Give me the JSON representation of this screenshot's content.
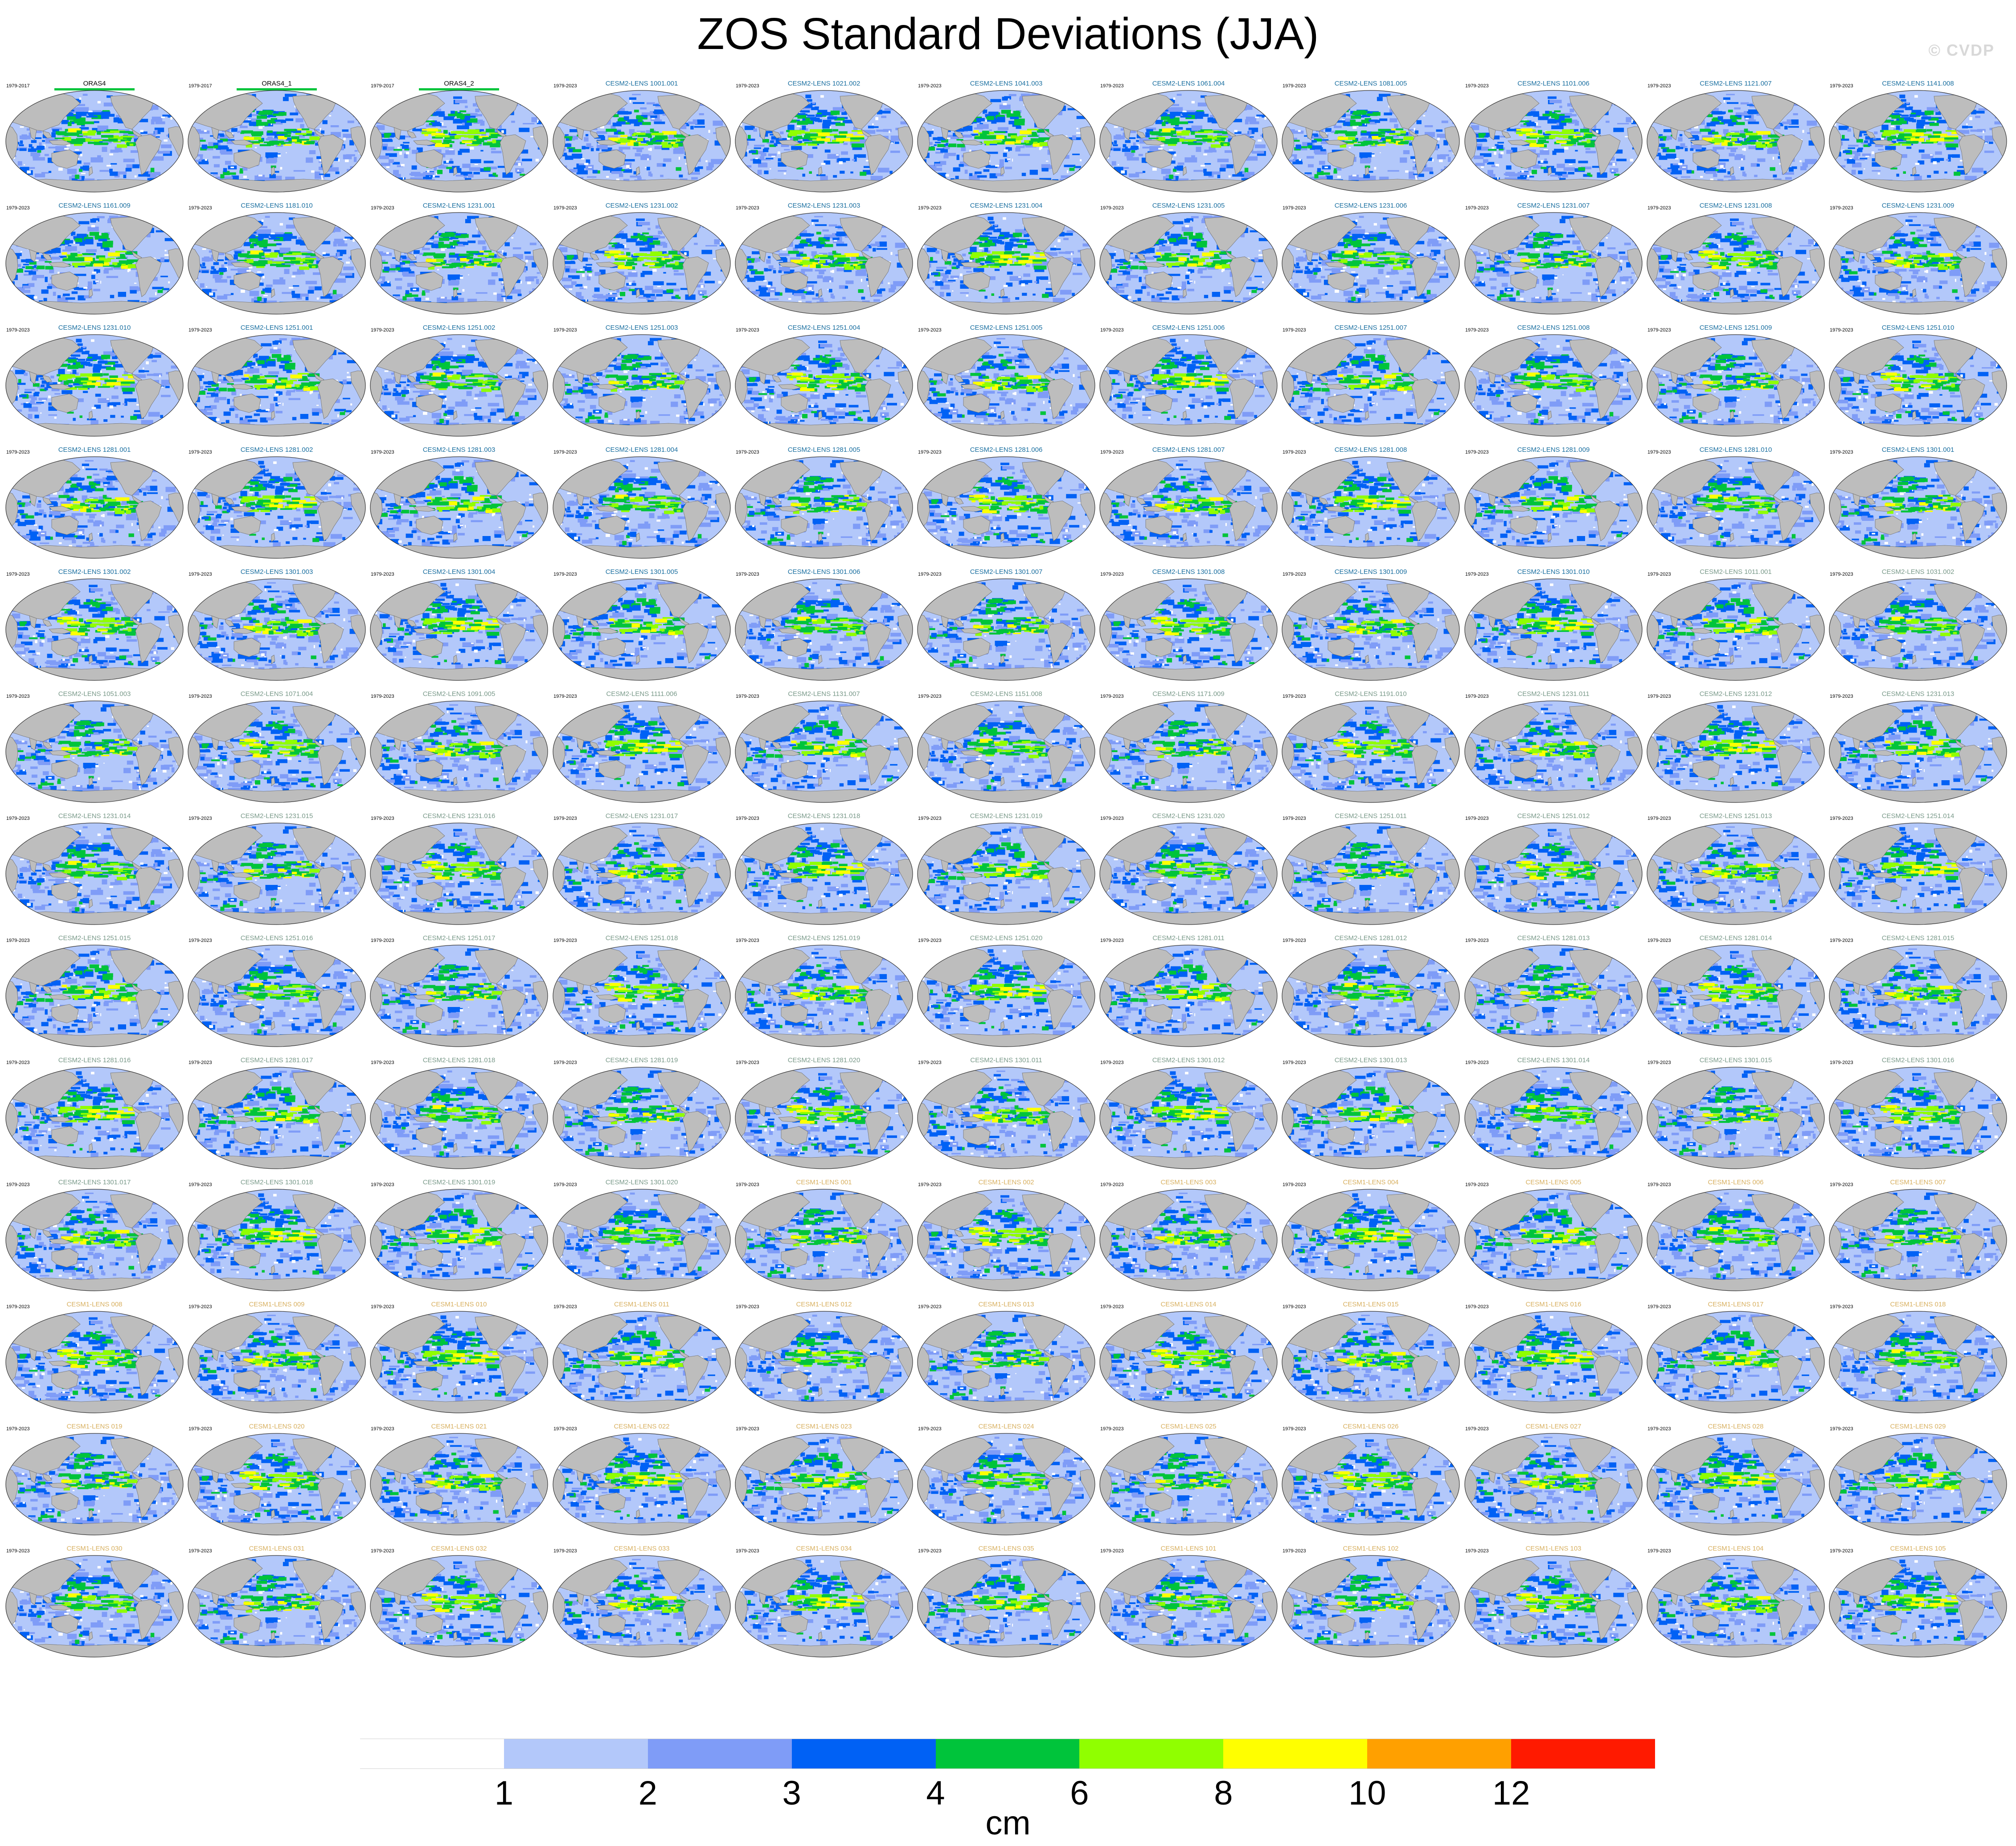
{
  "title": "ZOS Standard Deviations (JJA)",
  "watermark": "© CVDP",
  "chart_data": {
    "type": "heatmap",
    "title": "ZOS Standard Deviations (JJA)",
    "grid": {
      "rows": 13,
      "cols": 11
    },
    "units": "cm",
    "colorbar": {
      "levels": [
        1,
        2,
        3,
        4,
        6,
        8,
        10,
        12
      ],
      "tick_labels": [
        "1",
        "2",
        "3",
        "4",
        "6",
        "8",
        "10",
        "12"
      ],
      "colors": [
        "#ffffff",
        "#b3c8fa",
        "#7f9cf7",
        "#0061f5",
        "#00c43b",
        "#90ff00",
        "#ffff00",
        "#ffa000",
        "#ff1a00"
      ]
    },
    "colors": {
      "land": "#bdbdbd",
      "coast": "#707070",
      "ocean_base": "#b3c8fa",
      "obs_label": "#000000",
      "cesm2_label": "#1a6fa0",
      "cesm2_smbb_label": "#7a9a8a",
      "cesm1_label": "#d8b060",
      "obs_period_bar": "#00c43b"
    },
    "panels": [
      {
        "name": "ORAS4",
        "period": "1979-2017",
        "group": "obs"
      },
      {
        "name": "ORAS4_1",
        "period": "1979-2017",
        "group": "obs"
      },
      {
        "name": "ORAS4_2",
        "period": "1979-2017",
        "group": "obs"
      },
      {
        "name": "CESM2-LENS 1001.001",
        "period": "1979-2023",
        "group": "cesm2"
      },
      {
        "name": "CESM2-LENS 1021.002",
        "period": "1979-2023",
        "group": "cesm2"
      },
      {
        "name": "CESM2-LENS 1041.003",
        "period": "1979-2023",
        "group": "cesm2"
      },
      {
        "name": "CESM2-LENS 1061.004",
        "period": "1979-2023",
        "group": "cesm2"
      },
      {
        "name": "CESM2-LENS 1081.005",
        "period": "1979-2023",
        "group": "cesm2"
      },
      {
        "name": "CESM2-LENS 1101.006",
        "period": "1979-2023",
        "group": "cesm2"
      },
      {
        "name": "CESM2-LENS 1121.007",
        "period": "1979-2023",
        "group": "cesm2"
      },
      {
        "name": "CESM2-LENS 1141.008",
        "period": "1979-2023",
        "group": "cesm2"
      },
      {
        "name": "CESM2-LENS 1161.009",
        "period": "1979-2023",
        "group": "cesm2"
      },
      {
        "name": "CESM2-LENS 1181.010",
        "period": "1979-2023",
        "group": "cesm2"
      },
      {
        "name": "CESM2-LENS 1231.001",
        "period": "1979-2023",
        "group": "cesm2"
      },
      {
        "name": "CESM2-LENS 1231.002",
        "period": "1979-2023",
        "group": "cesm2"
      },
      {
        "name": "CESM2-LENS 1231.003",
        "period": "1979-2023",
        "group": "cesm2"
      },
      {
        "name": "CESM2-LENS 1231.004",
        "period": "1979-2023",
        "group": "cesm2"
      },
      {
        "name": "CESM2-LENS 1231.005",
        "period": "1979-2023",
        "group": "cesm2"
      },
      {
        "name": "CESM2-LENS 1231.006",
        "period": "1979-2023",
        "group": "cesm2"
      },
      {
        "name": "CESM2-LENS 1231.007",
        "period": "1979-2023",
        "group": "cesm2"
      },
      {
        "name": "CESM2-LENS 1231.008",
        "period": "1979-2023",
        "group": "cesm2"
      },
      {
        "name": "CESM2-LENS 1231.009",
        "period": "1979-2023",
        "group": "cesm2"
      },
      {
        "name": "CESM2-LENS 1231.010",
        "period": "1979-2023",
        "group": "cesm2"
      },
      {
        "name": "CESM2-LENS 1251.001",
        "period": "1979-2023",
        "group": "cesm2"
      },
      {
        "name": "CESM2-LENS 1251.002",
        "period": "1979-2023",
        "group": "cesm2"
      },
      {
        "name": "CESM2-LENS 1251.003",
        "period": "1979-2023",
        "group": "cesm2"
      },
      {
        "name": "CESM2-LENS 1251.004",
        "period": "1979-2023",
        "group": "cesm2"
      },
      {
        "name": "CESM2-LENS 1251.005",
        "period": "1979-2023",
        "group": "cesm2"
      },
      {
        "name": "CESM2-LENS 1251.006",
        "period": "1979-2023",
        "group": "cesm2"
      },
      {
        "name": "CESM2-LENS 1251.007",
        "period": "1979-2023",
        "group": "cesm2"
      },
      {
        "name": "CESM2-LENS 1251.008",
        "period": "1979-2023",
        "group": "cesm2"
      },
      {
        "name": "CESM2-LENS 1251.009",
        "period": "1979-2023",
        "group": "cesm2"
      },
      {
        "name": "CESM2-LENS 1251.010",
        "period": "1979-2023",
        "group": "cesm2"
      },
      {
        "name": "CESM2-LENS 1281.001",
        "period": "1979-2023",
        "group": "cesm2"
      },
      {
        "name": "CESM2-LENS 1281.002",
        "period": "1979-2023",
        "group": "cesm2"
      },
      {
        "name": "CESM2-LENS 1281.003",
        "period": "1979-2023",
        "group": "cesm2"
      },
      {
        "name": "CESM2-LENS 1281.004",
        "period": "1979-2023",
        "group": "cesm2"
      },
      {
        "name": "CESM2-LENS 1281.005",
        "period": "1979-2023",
        "group": "cesm2"
      },
      {
        "name": "CESM2-LENS 1281.006",
        "period": "1979-2023",
        "group": "cesm2"
      },
      {
        "name": "CESM2-LENS 1281.007",
        "period": "1979-2023",
        "group": "cesm2"
      },
      {
        "name": "CESM2-LENS 1281.008",
        "period": "1979-2023",
        "group": "cesm2"
      },
      {
        "name": "CESM2-LENS 1281.009",
        "period": "1979-2023",
        "group": "cesm2"
      },
      {
        "name": "CESM2-LENS 1281.010",
        "period": "1979-2023",
        "group": "cesm2"
      },
      {
        "name": "CESM2-LENS 1301.001",
        "period": "1979-2023",
        "group": "cesm2"
      },
      {
        "name": "CESM2-LENS 1301.002",
        "period": "1979-2023",
        "group": "cesm2"
      },
      {
        "name": "CESM2-LENS 1301.003",
        "period": "1979-2023",
        "group": "cesm2"
      },
      {
        "name": "CESM2-LENS 1301.004",
        "period": "1979-2023",
        "group": "cesm2"
      },
      {
        "name": "CESM2-LENS 1301.005",
        "period": "1979-2023",
        "group": "cesm2"
      },
      {
        "name": "CESM2-LENS 1301.006",
        "period": "1979-2023",
        "group": "cesm2"
      },
      {
        "name": "CESM2-LENS 1301.007",
        "period": "1979-2023",
        "group": "cesm2"
      },
      {
        "name": "CESM2-LENS 1301.008",
        "period": "1979-2023",
        "group": "cesm2"
      },
      {
        "name": "CESM2-LENS 1301.009",
        "period": "1979-2023",
        "group": "cesm2"
      },
      {
        "name": "CESM2-LENS 1301.010",
        "period": "1979-2023",
        "group": "cesm2"
      },
      {
        "name": "CESM2-LENS 1011.001",
        "period": "1979-2023",
        "group": "cesm2_smbb"
      },
      {
        "name": "CESM2-LENS 1031.002",
        "period": "1979-2023",
        "group": "cesm2_smbb"
      },
      {
        "name": "CESM2-LENS 1051.003",
        "period": "1979-2023",
        "group": "cesm2_smbb"
      },
      {
        "name": "CESM2-LENS 1071.004",
        "period": "1979-2023",
        "group": "cesm2_smbb"
      },
      {
        "name": "CESM2-LENS 1091.005",
        "period": "1979-2023",
        "group": "cesm2_smbb"
      },
      {
        "name": "CESM2-LENS 1111.006",
        "period": "1979-2023",
        "group": "cesm2_smbb"
      },
      {
        "name": "CESM2-LENS 1131.007",
        "period": "1979-2023",
        "group": "cesm2_smbb"
      },
      {
        "name": "CESM2-LENS 1151.008",
        "period": "1979-2023",
        "group": "cesm2_smbb"
      },
      {
        "name": "CESM2-LENS 1171.009",
        "period": "1979-2023",
        "group": "cesm2_smbb"
      },
      {
        "name": "CESM2-LENS 1191.010",
        "period": "1979-2023",
        "group": "cesm2_smbb"
      },
      {
        "name": "CESM2-LENS 1231.011",
        "period": "1979-2023",
        "group": "cesm2_smbb"
      },
      {
        "name": "CESM2-LENS 1231.012",
        "period": "1979-2023",
        "group": "cesm2_smbb"
      },
      {
        "name": "CESM2-LENS 1231.013",
        "period": "1979-2023",
        "group": "cesm2_smbb"
      },
      {
        "name": "CESM2-LENS 1231.014",
        "period": "1979-2023",
        "group": "cesm2_smbb"
      },
      {
        "name": "CESM2-LENS 1231.015",
        "period": "1979-2023",
        "group": "cesm2_smbb"
      },
      {
        "name": "CESM2-LENS 1231.016",
        "period": "1979-2023",
        "group": "cesm2_smbb"
      },
      {
        "name": "CESM2-LENS 1231.017",
        "period": "1979-2023",
        "group": "cesm2_smbb"
      },
      {
        "name": "CESM2-LENS 1231.018",
        "period": "1979-2023",
        "group": "cesm2_smbb"
      },
      {
        "name": "CESM2-LENS 1231.019",
        "period": "1979-2023",
        "group": "cesm2_smbb"
      },
      {
        "name": "CESM2-LENS 1231.020",
        "period": "1979-2023",
        "group": "cesm2_smbb"
      },
      {
        "name": "CESM2-LENS 1251.011",
        "period": "1979-2023",
        "group": "cesm2_smbb"
      },
      {
        "name": "CESM2-LENS 1251.012",
        "period": "1979-2023",
        "group": "cesm2_smbb"
      },
      {
        "name": "CESM2-LENS 1251.013",
        "period": "1979-2023",
        "group": "cesm2_smbb"
      },
      {
        "name": "CESM2-LENS 1251.014",
        "period": "1979-2023",
        "group": "cesm2_smbb"
      },
      {
        "name": "CESM2-LENS 1251.015",
        "period": "1979-2023",
        "group": "cesm2_smbb"
      },
      {
        "name": "CESM2-LENS 1251.016",
        "period": "1979-2023",
        "group": "cesm2_smbb"
      },
      {
        "name": "CESM2-LENS 1251.017",
        "period": "1979-2023",
        "group": "cesm2_smbb"
      },
      {
        "name": "CESM2-LENS 1251.018",
        "period": "1979-2023",
        "group": "cesm2_smbb"
      },
      {
        "name": "CESM2-LENS 1251.019",
        "period": "1979-2023",
        "group": "cesm2_smbb"
      },
      {
        "name": "CESM2-LENS 1251.020",
        "period": "1979-2023",
        "group": "cesm2_smbb"
      },
      {
        "name": "CESM2-LENS 1281.011",
        "period": "1979-2023",
        "group": "cesm2_smbb"
      },
      {
        "name": "CESM2-LENS 1281.012",
        "period": "1979-2023",
        "group": "cesm2_smbb"
      },
      {
        "name": "CESM2-LENS 1281.013",
        "period": "1979-2023",
        "group": "cesm2_smbb"
      },
      {
        "name": "CESM2-LENS 1281.014",
        "period": "1979-2023",
        "group": "cesm2_smbb"
      },
      {
        "name": "CESM2-LENS 1281.015",
        "period": "1979-2023",
        "group": "cesm2_smbb"
      },
      {
        "name": "CESM2-LENS 1281.016",
        "period": "1979-2023",
        "group": "cesm2_smbb"
      },
      {
        "name": "CESM2-LENS 1281.017",
        "period": "1979-2023",
        "group": "cesm2_smbb"
      },
      {
        "name": "CESM2-LENS 1281.018",
        "period": "1979-2023",
        "group": "cesm2_smbb"
      },
      {
        "name": "CESM2-LENS 1281.019",
        "period": "1979-2023",
        "group": "cesm2_smbb"
      },
      {
        "name": "CESM2-LENS 1281.020",
        "period": "1979-2023",
        "group": "cesm2_smbb"
      },
      {
        "name": "CESM2-LENS 1301.011",
        "period": "1979-2023",
        "group": "cesm2_smbb"
      },
      {
        "name": "CESM2-LENS 1301.012",
        "period": "1979-2023",
        "group": "cesm2_smbb"
      },
      {
        "name": "CESM2-LENS 1301.013",
        "period": "1979-2023",
        "group": "cesm2_smbb"
      },
      {
        "name": "CESM2-LENS 1301.014",
        "period": "1979-2023",
        "group": "cesm2_smbb"
      },
      {
        "name": "CESM2-LENS 1301.015",
        "period": "1979-2023",
        "group": "cesm2_smbb"
      },
      {
        "name": "CESM2-LENS 1301.016",
        "period": "1979-2023",
        "group": "cesm2_smbb"
      },
      {
        "name": "CESM2-LENS 1301.017",
        "period": "1979-2023",
        "group": "cesm2_smbb"
      },
      {
        "name": "CESM2-LENS 1301.018",
        "period": "1979-2023",
        "group": "cesm2_smbb"
      },
      {
        "name": "CESM2-LENS 1301.019",
        "period": "1979-2023",
        "group": "cesm2_smbb"
      },
      {
        "name": "CESM2-LENS 1301.020",
        "period": "1979-2023",
        "group": "cesm2_smbb"
      },
      {
        "name": "CESM1-LENS 001",
        "period": "1979-2023",
        "group": "cesm1"
      },
      {
        "name": "CESM1-LENS 002",
        "period": "1979-2023",
        "group": "cesm1"
      },
      {
        "name": "CESM1-LENS 003",
        "period": "1979-2023",
        "group": "cesm1"
      },
      {
        "name": "CESM1-LENS 004",
        "period": "1979-2023",
        "group": "cesm1"
      },
      {
        "name": "CESM1-LENS 005",
        "period": "1979-2023",
        "group": "cesm1"
      },
      {
        "name": "CESM1-LENS 006",
        "period": "1979-2023",
        "group": "cesm1"
      },
      {
        "name": "CESM1-LENS 007",
        "period": "1979-2023",
        "group": "cesm1"
      },
      {
        "name": "CESM1-LENS 008",
        "period": "1979-2023",
        "group": "cesm1"
      },
      {
        "name": "CESM1-LENS 009",
        "period": "1979-2023",
        "group": "cesm1"
      },
      {
        "name": "CESM1-LENS 010",
        "period": "1979-2023",
        "group": "cesm1"
      },
      {
        "name": "CESM1-LENS 011",
        "period": "1979-2023",
        "group": "cesm1"
      },
      {
        "name": "CESM1-LENS 012",
        "period": "1979-2023",
        "group": "cesm1"
      },
      {
        "name": "CESM1-LENS 013",
        "period": "1979-2023",
        "group": "cesm1"
      },
      {
        "name": "CESM1-LENS 014",
        "period": "1979-2023",
        "group": "cesm1"
      },
      {
        "name": "CESM1-LENS 015",
        "period": "1979-2023",
        "group": "cesm1"
      },
      {
        "name": "CESM1-LENS 016",
        "period": "1979-2023",
        "group": "cesm1"
      },
      {
        "name": "CESM1-LENS 017",
        "period": "1979-2023",
        "group": "cesm1"
      },
      {
        "name": "CESM1-LENS 018",
        "period": "1979-2023",
        "group": "cesm1"
      },
      {
        "name": "CESM1-LENS 019",
        "period": "1979-2023",
        "group": "cesm1"
      },
      {
        "name": "CESM1-LENS 020",
        "period": "1979-2023",
        "group": "cesm1"
      },
      {
        "name": "CESM1-LENS 021",
        "period": "1979-2023",
        "group": "cesm1"
      },
      {
        "name": "CESM1-LENS 022",
        "period": "1979-2023",
        "group": "cesm1"
      },
      {
        "name": "CESM1-LENS 023",
        "period": "1979-2023",
        "group": "cesm1"
      },
      {
        "name": "CESM1-LENS 024",
        "period": "1979-2023",
        "group": "cesm1"
      },
      {
        "name": "CESM1-LENS 025",
        "period": "1979-2023",
        "group": "cesm1"
      },
      {
        "name": "CESM1-LENS 026",
        "period": "1979-2023",
        "group": "cesm1"
      },
      {
        "name": "CESM1-LENS 027",
        "period": "1979-2023",
        "group": "cesm1"
      },
      {
        "name": "CESM1-LENS 028",
        "period": "1979-2023",
        "group": "cesm1"
      },
      {
        "name": "CESM1-LENS 029",
        "period": "1979-2023",
        "group": "cesm1"
      },
      {
        "name": "CESM1-LENS 030",
        "period": "1979-2023",
        "group": "cesm1"
      },
      {
        "name": "CESM1-LENS 031",
        "period": "1979-2023",
        "group": "cesm1"
      },
      {
        "name": "CESM1-LENS 032",
        "period": "1979-2023",
        "group": "cesm1"
      },
      {
        "name": "CESM1-LENS 033",
        "period": "1979-2023",
        "group": "cesm1"
      },
      {
        "name": "CESM1-LENS 034",
        "period": "1979-2023",
        "group": "cesm1"
      },
      {
        "name": "CESM1-LENS 035",
        "period": "1979-2023",
        "group": "cesm1"
      },
      {
        "name": "CESM1-LENS 101",
        "period": "1979-2023",
        "group": "cesm1"
      },
      {
        "name": "CESM1-LENS 102",
        "period": "1979-2023",
        "group": "cesm1"
      },
      {
        "name": "CESM1-LENS 103",
        "period": "1979-2023",
        "group": "cesm1"
      },
      {
        "name": "CESM1-LENS 104",
        "period": "1979-2023",
        "group": "cesm1"
      },
      {
        "name": "CESM1-LENS 105",
        "period": "1979-2023",
        "group": "cesm1"
      }
    ]
  }
}
